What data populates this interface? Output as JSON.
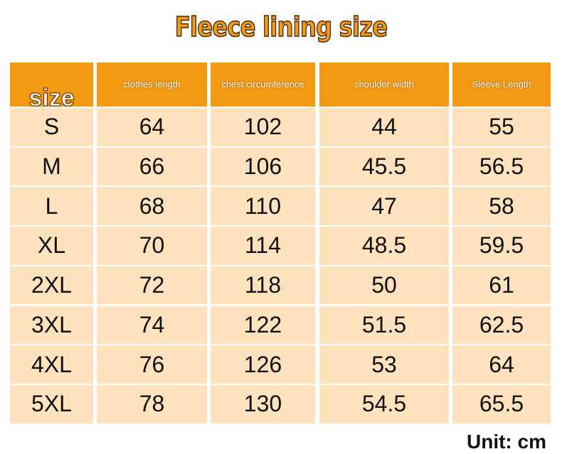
{
  "header": {
    "title": "Fleece lining size"
  },
  "table": {
    "columns": [
      "size",
      "clothes length",
      "chest circumference",
      "shoulder width",
      "Sleeve Length"
    ],
    "rows": [
      [
        "S",
        64,
        102,
        44,
        55
      ],
      [
        "M",
        66,
        106,
        45.5,
        56.5
      ],
      [
        "L",
        68,
        110,
        47,
        58
      ],
      [
        "XL",
        70,
        114,
        48.5,
        59.5
      ],
      [
        "2XL",
        72,
        118,
        50,
        61
      ],
      [
        "3XL",
        74,
        122,
        51.5,
        62.5
      ],
      [
        "4XL",
        76,
        126,
        53,
        64
      ],
      [
        "5XL",
        78,
        130,
        54.5,
        65.5
      ]
    ]
  },
  "footer": {
    "unit": "Unit: cm"
  }
}
